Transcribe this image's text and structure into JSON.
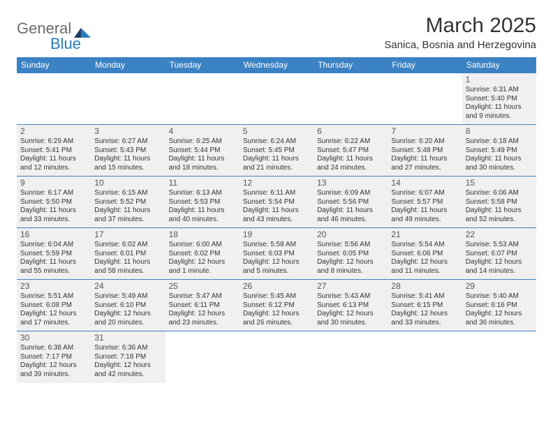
{
  "logo": {
    "text1": "General",
    "text2": "Blue"
  },
  "title": "March 2025",
  "location": "Sanica, Bosnia and Herzegovina",
  "weekdays": [
    "Sunday",
    "Monday",
    "Tuesday",
    "Wednesday",
    "Thursday",
    "Friday",
    "Saturday"
  ],
  "colors": {
    "header_bg": "#3b82c4",
    "header_fg": "#ffffff",
    "cell_bg": "#f0f0f0",
    "border": "#3b82c4",
    "logo_gray": "#6b6b6b",
    "logo_blue": "#2a7ac0"
  },
  "grid": [
    [
      {
        "blank": true
      },
      {
        "blank": true
      },
      {
        "blank": true
      },
      {
        "blank": true
      },
      {
        "blank": true
      },
      {
        "blank": true
      },
      {
        "n": "1",
        "sr": "Sunrise: 6:31 AM",
        "ss": "Sunset: 5:40 PM",
        "d1": "Daylight: 11 hours",
        "d2": "and 9 minutes."
      }
    ],
    [
      {
        "n": "2",
        "sr": "Sunrise: 6:29 AM",
        "ss": "Sunset: 5:41 PM",
        "d1": "Daylight: 11 hours",
        "d2": "and 12 minutes."
      },
      {
        "n": "3",
        "sr": "Sunrise: 6:27 AM",
        "ss": "Sunset: 5:43 PM",
        "d1": "Daylight: 11 hours",
        "d2": "and 15 minutes."
      },
      {
        "n": "4",
        "sr": "Sunrise: 6:25 AM",
        "ss": "Sunset: 5:44 PM",
        "d1": "Daylight: 11 hours",
        "d2": "and 18 minutes."
      },
      {
        "n": "5",
        "sr": "Sunrise: 6:24 AM",
        "ss": "Sunset: 5:45 PM",
        "d1": "Daylight: 11 hours",
        "d2": "and 21 minutes."
      },
      {
        "n": "6",
        "sr": "Sunrise: 6:22 AM",
        "ss": "Sunset: 5:47 PM",
        "d1": "Daylight: 11 hours",
        "d2": "and 24 minutes."
      },
      {
        "n": "7",
        "sr": "Sunrise: 6:20 AM",
        "ss": "Sunset: 5:48 PM",
        "d1": "Daylight: 11 hours",
        "d2": "and 27 minutes."
      },
      {
        "n": "8",
        "sr": "Sunrise: 6:18 AM",
        "ss": "Sunset: 5:49 PM",
        "d1": "Daylight: 11 hours",
        "d2": "and 30 minutes."
      }
    ],
    [
      {
        "n": "9",
        "sr": "Sunrise: 6:17 AM",
        "ss": "Sunset: 5:50 PM",
        "d1": "Daylight: 11 hours",
        "d2": "and 33 minutes."
      },
      {
        "n": "10",
        "sr": "Sunrise: 6:15 AM",
        "ss": "Sunset: 5:52 PM",
        "d1": "Daylight: 11 hours",
        "d2": "and 37 minutes."
      },
      {
        "n": "11",
        "sr": "Sunrise: 6:13 AM",
        "ss": "Sunset: 5:53 PM",
        "d1": "Daylight: 11 hours",
        "d2": "and 40 minutes."
      },
      {
        "n": "12",
        "sr": "Sunrise: 6:11 AM",
        "ss": "Sunset: 5:54 PM",
        "d1": "Daylight: 11 hours",
        "d2": "and 43 minutes."
      },
      {
        "n": "13",
        "sr": "Sunrise: 6:09 AM",
        "ss": "Sunset: 5:56 PM",
        "d1": "Daylight: 11 hours",
        "d2": "and 46 minutes."
      },
      {
        "n": "14",
        "sr": "Sunrise: 6:07 AM",
        "ss": "Sunset: 5:57 PM",
        "d1": "Daylight: 11 hours",
        "d2": "and 49 minutes."
      },
      {
        "n": "15",
        "sr": "Sunrise: 6:06 AM",
        "ss": "Sunset: 5:58 PM",
        "d1": "Daylight: 11 hours",
        "d2": "and 52 minutes."
      }
    ],
    [
      {
        "n": "16",
        "sr": "Sunrise: 6:04 AM",
        "ss": "Sunset: 5:59 PM",
        "d1": "Daylight: 11 hours",
        "d2": "and 55 minutes."
      },
      {
        "n": "17",
        "sr": "Sunrise: 6:02 AM",
        "ss": "Sunset: 6:01 PM",
        "d1": "Daylight: 11 hours",
        "d2": "and 58 minutes."
      },
      {
        "n": "18",
        "sr": "Sunrise: 6:00 AM",
        "ss": "Sunset: 6:02 PM",
        "d1": "Daylight: 12 hours",
        "d2": "and 1 minute."
      },
      {
        "n": "19",
        "sr": "Sunrise: 5:58 AM",
        "ss": "Sunset: 6:03 PM",
        "d1": "Daylight: 12 hours",
        "d2": "and 5 minutes."
      },
      {
        "n": "20",
        "sr": "Sunrise: 5:56 AM",
        "ss": "Sunset: 6:05 PM",
        "d1": "Daylight: 12 hours",
        "d2": "and 8 minutes."
      },
      {
        "n": "21",
        "sr": "Sunrise: 5:54 AM",
        "ss": "Sunset: 6:06 PM",
        "d1": "Daylight: 12 hours",
        "d2": "and 11 minutes."
      },
      {
        "n": "22",
        "sr": "Sunrise: 5:53 AM",
        "ss": "Sunset: 6:07 PM",
        "d1": "Daylight: 12 hours",
        "d2": "and 14 minutes."
      }
    ],
    [
      {
        "n": "23",
        "sr": "Sunrise: 5:51 AM",
        "ss": "Sunset: 6:08 PM",
        "d1": "Daylight: 12 hours",
        "d2": "and 17 minutes."
      },
      {
        "n": "24",
        "sr": "Sunrise: 5:49 AM",
        "ss": "Sunset: 6:10 PM",
        "d1": "Daylight: 12 hours",
        "d2": "and 20 minutes."
      },
      {
        "n": "25",
        "sr": "Sunrise: 5:47 AM",
        "ss": "Sunset: 6:11 PM",
        "d1": "Daylight: 12 hours",
        "d2": "and 23 minutes."
      },
      {
        "n": "26",
        "sr": "Sunrise: 5:45 AM",
        "ss": "Sunset: 6:12 PM",
        "d1": "Daylight: 12 hours",
        "d2": "and 26 minutes."
      },
      {
        "n": "27",
        "sr": "Sunrise: 5:43 AM",
        "ss": "Sunset: 6:13 PM",
        "d1": "Daylight: 12 hours",
        "d2": "and 30 minutes."
      },
      {
        "n": "28",
        "sr": "Sunrise: 5:41 AM",
        "ss": "Sunset: 6:15 PM",
        "d1": "Daylight: 12 hours",
        "d2": "and 33 minutes."
      },
      {
        "n": "29",
        "sr": "Sunrise: 5:40 AM",
        "ss": "Sunset: 6:16 PM",
        "d1": "Daylight: 12 hours",
        "d2": "and 36 minutes."
      }
    ],
    [
      {
        "n": "30",
        "sr": "Sunrise: 6:38 AM",
        "ss": "Sunset: 7:17 PM",
        "d1": "Daylight: 12 hours",
        "d2": "and 39 minutes."
      },
      {
        "n": "31",
        "sr": "Sunrise: 6:36 AM",
        "ss": "Sunset: 7:18 PM",
        "d1": "Daylight: 12 hours",
        "d2": "and 42 minutes."
      },
      {
        "blank": true
      },
      {
        "blank": true
      },
      {
        "blank": true
      },
      {
        "blank": true
      },
      {
        "blank": true
      }
    ]
  ]
}
